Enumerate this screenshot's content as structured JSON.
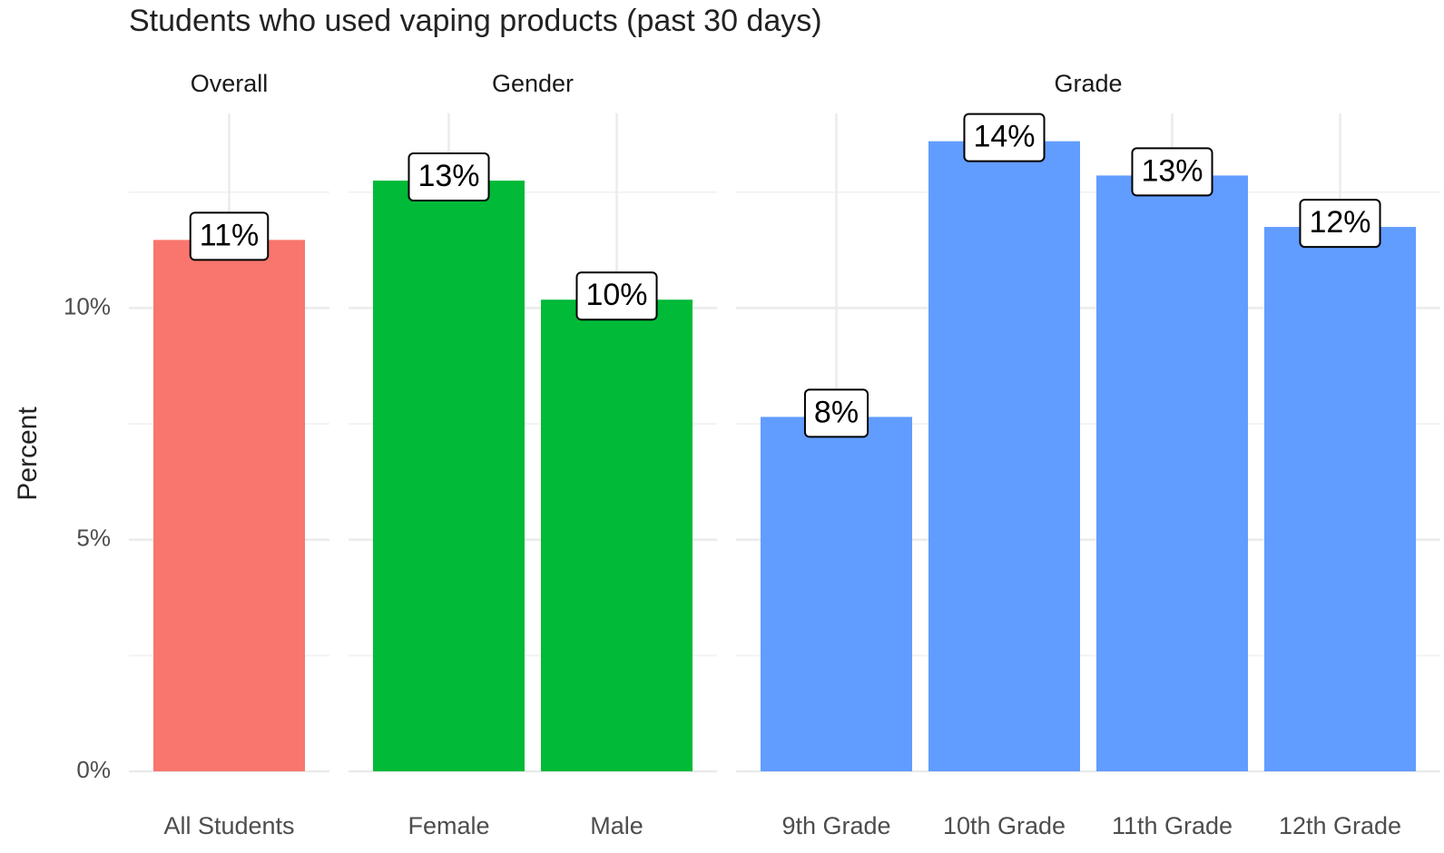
{
  "chart_data": {
    "type": "bar",
    "title": "Students who used vaping products (past 30 days)",
    "y_label": "Percent",
    "ylim": [
      0,
      14.2
    ],
    "yticks": [
      {
        "value": 0,
        "label": "0%"
      },
      {
        "value": 5,
        "label": "5%"
      },
      {
        "value": 10,
        "label": "10%"
      }
    ],
    "yminor": [
      2.5,
      7.5,
      12.5
    ],
    "grid": true,
    "facets": [
      {
        "name": "Overall",
        "color": "#f8766d",
        "categories": [
          "All Students"
        ],
        "values": [
          11.47
        ],
        "value_labels": [
          "11%"
        ]
      },
      {
        "name": "Gender",
        "color": "#00ba38",
        "categories": [
          "Female",
          "Male"
        ],
        "values": [
          12.75,
          10.18
        ],
        "value_labels": [
          "13%",
          "10%"
        ]
      },
      {
        "name": "Grade",
        "color": "#619cff",
        "categories": [
          "9th Grade",
          "10th Grade",
          "11th Grade",
          "12th Grade"
        ],
        "values": [
          7.65,
          13.6,
          12.86,
          11.75
        ],
        "value_labels": [
          "8%",
          "14%",
          "13%",
          "12%"
        ]
      }
    ]
  }
}
